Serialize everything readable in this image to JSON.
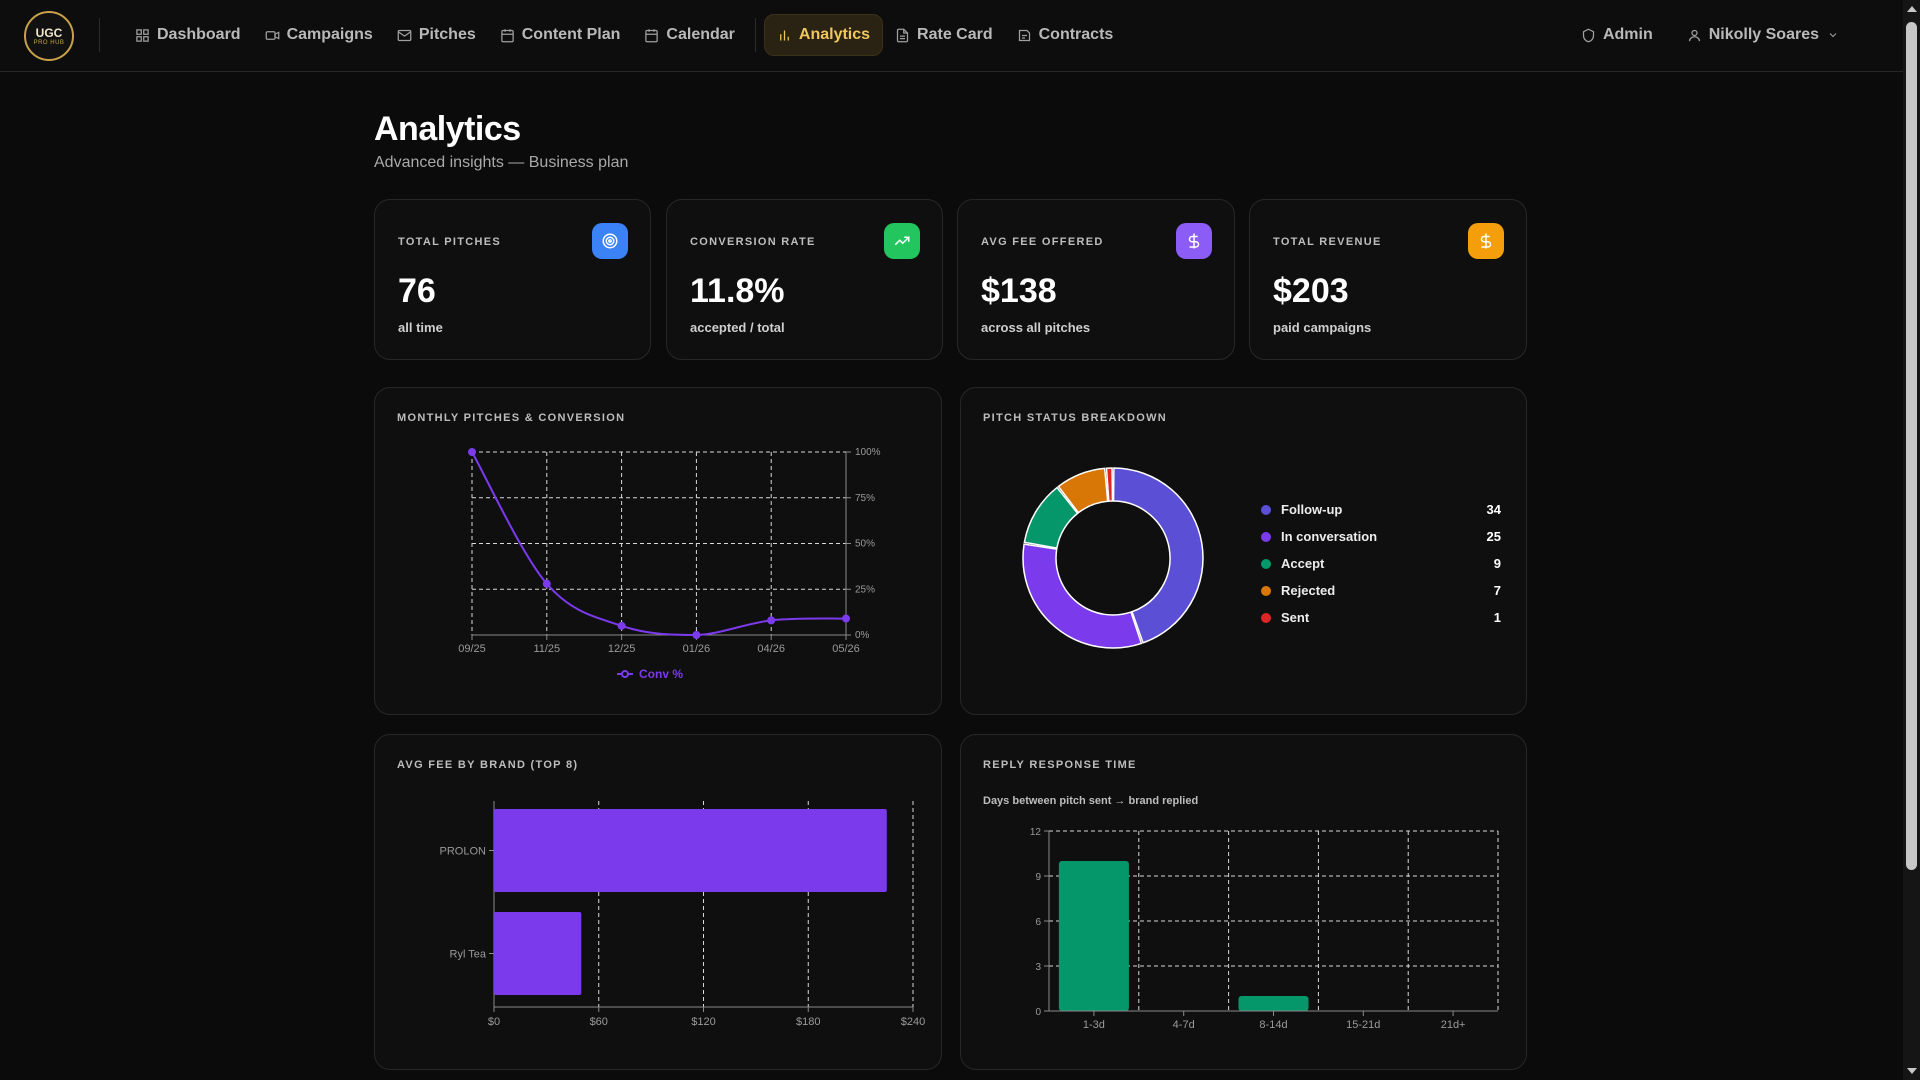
{
  "logo": {
    "line1": "UGC",
    "line2": "PRO HUB"
  },
  "nav": {
    "items": [
      {
        "label": "Dashboard",
        "icon": "grid-icon"
      },
      {
        "label": "Campaigns",
        "icon": "video-icon"
      },
      {
        "label": "Pitches",
        "icon": "mail-icon"
      },
      {
        "label": "Content Plan",
        "icon": "calendar-icon"
      },
      {
        "label": "Calendar",
        "icon": "calendar-icon"
      },
      {
        "label": "Analytics",
        "icon": "bar-chart-icon",
        "active": true
      },
      {
        "label": "Rate Card",
        "icon": "document-icon"
      },
      {
        "label": "Contracts",
        "icon": "contract-icon"
      }
    ],
    "admin_label": "Admin",
    "user_label": "Nikolly Soares"
  },
  "page": {
    "title": "Analytics",
    "subtitle": "Advanced insights — Business plan"
  },
  "stats": [
    {
      "label": "TOTAL PITCHES",
      "value": "76",
      "note": "all time",
      "icon": "target-icon",
      "color": "#3b82f6"
    },
    {
      "label": "CONVERSION RATE",
      "value": "11.8%",
      "note": "accepted / total",
      "icon": "trending-up-icon",
      "color": "#22c55e"
    },
    {
      "label": "AVG FEE OFFERED",
      "value": "$138",
      "note": "across all pitches",
      "icon": "dollar-icon",
      "color": "#8b5cf6"
    },
    {
      "label": "TOTAL REVENUE",
      "value": "$203",
      "note": "paid campaigns",
      "icon": "dollar-icon",
      "color": "#f59e0b"
    }
  ],
  "panels": {
    "monthly": {
      "title": "MONTHLY PITCHES & CONVERSION"
    },
    "status": {
      "title": "PITCH STATUS BREAKDOWN"
    },
    "fee": {
      "title": "AVG FEE BY BRAND (TOP 8)"
    },
    "reply": {
      "title": "REPLY RESPONSE TIME",
      "subtitle": "Days between pitch sent → brand replied"
    }
  },
  "chart_data": [
    {
      "type": "line",
      "title": "MONTHLY PITCHES & CONVERSION",
      "categories": [
        "09/25",
        "11/25",
        "12/25",
        "01/26",
        "04/26",
        "05/26"
      ],
      "series": [
        {
          "name": "Conv %",
          "values": [
            100,
            28,
            5,
            0,
            8,
            9
          ],
          "color": "#7c3aed"
        }
      ],
      "yticks": [
        "100%",
        "75%",
        "50%",
        "25%",
        "0%"
      ],
      "ylim": [
        0,
        100
      ],
      "grid": true,
      "legend": "bottom"
    },
    {
      "type": "pie",
      "title": "PITCH STATUS BREAKDOWN",
      "slices": [
        {
          "label": "Follow-up",
          "value": 34,
          "color": "#5b4fd6"
        },
        {
          "label": "In conversation",
          "value": 25,
          "color": "#7c3aed"
        },
        {
          "label": "Accept",
          "value": 9,
          "color": "#059669"
        },
        {
          "label": "Rejected",
          "value": 7,
          "color": "#d97706"
        },
        {
          "label": "Sent",
          "value": 1,
          "color": "#dc2626"
        }
      ],
      "legend": "right"
    },
    {
      "type": "bar",
      "orientation": "horizontal",
      "title": "AVG FEE BY BRAND (TOP 8)",
      "categories": [
        "PROLON",
        "Ryl Tea"
      ],
      "values": [
        225,
        50
      ],
      "xticks": [
        "$0",
        "$60",
        "$120",
        "$180",
        "$240"
      ],
      "xlim": [
        0,
        240
      ],
      "grid": true,
      "color": "#7c3aed"
    },
    {
      "type": "bar",
      "title": "REPLY RESPONSE TIME",
      "categories": [
        "1-3d",
        "4-7d",
        "8-14d",
        "15-21d",
        "21d+"
      ],
      "values": [
        10,
        0,
        1,
        0,
        0
      ],
      "yticks": [
        "12",
        "9",
        "6",
        "3",
        "0"
      ],
      "ylim": [
        0,
        12
      ],
      "grid": true,
      "color": "#059669"
    }
  ]
}
